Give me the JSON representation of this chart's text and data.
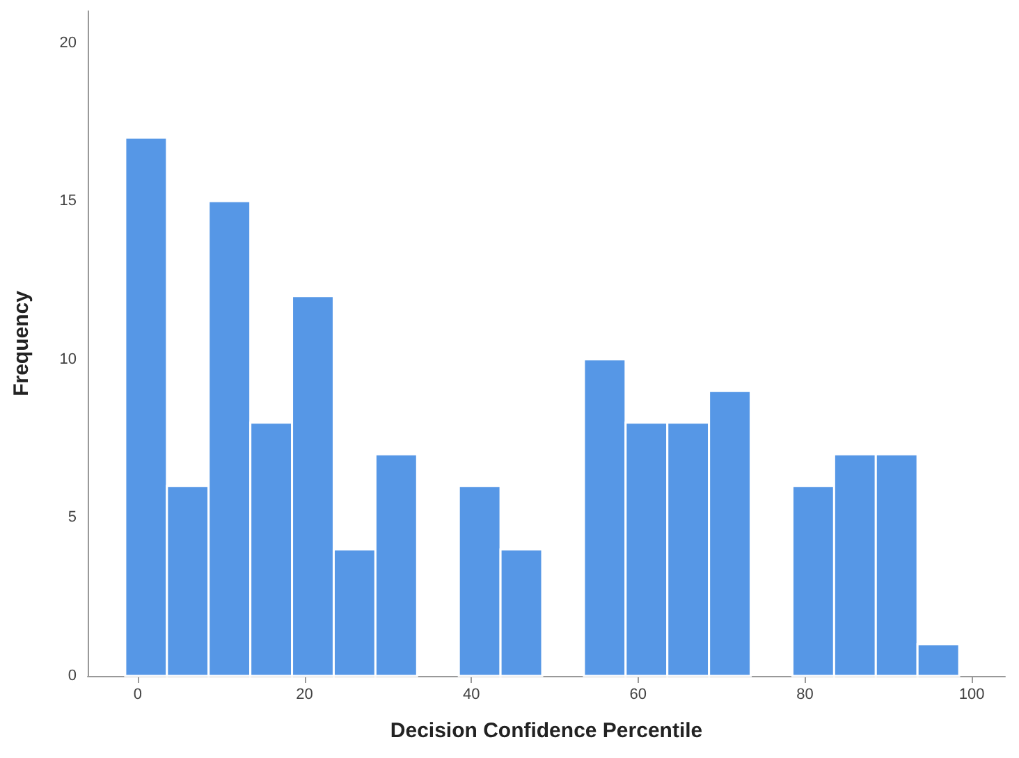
{
  "chart_data": {
    "type": "histogram",
    "xlabel": "Decision Confidence Percentile",
    "ylabel": "Frequency",
    "bins": [
      -1.5,
      3.5,
      8.5,
      13.5,
      18.5,
      23.5,
      28.5,
      33.5,
      38.5,
      43.5,
      48.5,
      53.5,
      58.5,
      63.5,
      68.5,
      73.5,
      78.5,
      83.5,
      88.5,
      93.5,
      98.5
    ],
    "values": [
      17,
      6,
      15,
      8,
      12,
      4,
      7,
      0,
      6,
      4,
      0,
      10,
      8,
      8,
      9,
      0,
      6,
      7,
      7,
      1
    ],
    "color": "#5697e6",
    "xlim": [
      -6,
      104
    ],
    "xticks": [
      0,
      20,
      40,
      60,
      80,
      100
    ],
    "ylim": [
      0,
      21
    ],
    "yticks": [
      0,
      5,
      10,
      15,
      20
    ],
    "grid": false
  }
}
